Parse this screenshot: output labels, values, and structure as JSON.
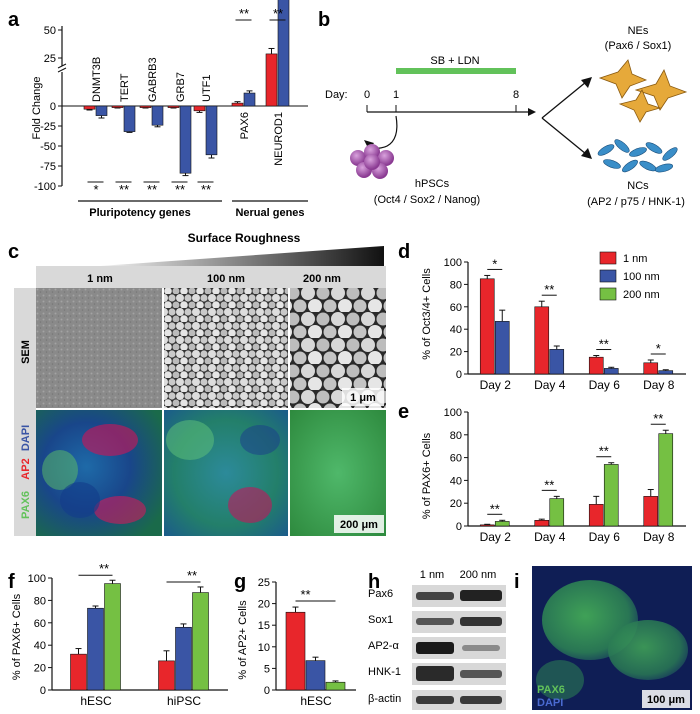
{
  "panel_labels": {
    "a": "a",
    "b": "b",
    "c": "c",
    "d": "d",
    "e": "e",
    "f": "f",
    "g": "g",
    "h": "h",
    "i": "i"
  },
  "colors": {
    "red": "#e8262b",
    "blue": "#3a55a5",
    "green": "#62c25a",
    "green_bar": "#75c043"
  },
  "panel_a": {
    "ylabel": "Fold Change",
    "ticks": [
      "50",
      "25",
      "0",
      "-25",
      "-50",
      "-75",
      "-100"
    ],
    "genes": [
      "DNMT3B",
      "TERT",
      "GABRB3",
      "GRB7",
      "UTF1",
      "PAX6",
      "NEUROD1"
    ],
    "sig": [
      "*",
      "**",
      "**",
      "**",
      "**",
      "**",
      "**"
    ],
    "group1": "Pluripotency genes",
    "group2": "Nerual genes"
  },
  "panel_b": {
    "treatment": "SB + LDN",
    "day_label": "Day:",
    "days": [
      "0",
      "1",
      "8"
    ],
    "hpsc": "hPSCs",
    "hpsc_markers": "(Oct4 / Sox2 / Nanog)",
    "ne": "NEs",
    "ne_markers": "(Pax6 / Sox1)",
    "nc": "NCs",
    "nc_markers": "(AP2 / p75 / HNK-1)"
  },
  "panel_c": {
    "title": "Surface Roughness",
    "cols": [
      "1 nm",
      "100 nm",
      "200 nm"
    ],
    "row1": "SEM",
    "row2_dapi": "DAPI",
    "row2_ap2": "AP2",
    "row2_pax6": "PAX6",
    "scale1": "1 μm",
    "scale2": "200 μm"
  },
  "panel_d": {
    "ylabel": "% of Oct3/4+ Cells",
    "legend": [
      "1 nm",
      "100 nm",
      "200 nm"
    ],
    "sig": [
      "*",
      "**",
      "**",
      "*"
    ]
  },
  "panel_e": {
    "ylabel": "% of PAX6+ Cells",
    "sig": [
      "**",
      "**",
      "**",
      "**"
    ]
  },
  "panel_f": {
    "ylabel": "% of PAX6+ Cells",
    "sig": [
      "**",
      "**"
    ]
  },
  "panel_g": {
    "ylabel": "% of AP2+ Cells",
    "sig": [
      "**"
    ]
  },
  "panel_h": {
    "cols": [
      "1 nm",
      "200 nm"
    ],
    "rows": [
      "Pax6",
      "Sox1",
      "AP2-α",
      "HNK-1",
      "β-actin"
    ]
  },
  "panel_i": {
    "pax6": "PAX6",
    "dapi": "DAPI",
    "scale": "100 μm"
  },
  "chart_data": [
    {
      "type": "bar",
      "title": "",
      "categories": [
        "Day 2",
        "Day 4",
        "Day 6",
        "Day 8"
      ],
      "ylabel": "% of Oct3/4+ Cells",
      "ylim": [
        0,
        100
      ],
      "yticks": [
        "0",
        "20",
        "40",
        "60",
        "80",
        "100"
      ],
      "series": [
        {
          "name": "1 nm",
          "values": [
            85,
            60,
            15,
            10
          ],
          "err": [
            3,
            5,
            1.5,
            2.5
          ]
        },
        {
          "name": "100 nm",
          "values": [
            47,
            22,
            5,
            3
          ],
          "err": [
            10,
            3,
            1,
            0.8
          ]
        }
      ]
    },
    {
      "type": "bar",
      "title": "",
      "categories": [
        "Day 2",
        "Day 4",
        "Day 6",
        "Day 8"
      ],
      "ylabel": "% of PAX6+ Cells",
      "ylim": [
        0,
        100
      ],
      "yticks": [
        "0",
        "20",
        "40",
        "60",
        "80",
        "100"
      ],
      "series": [
        {
          "name": "1 nm",
          "values": [
            1,
            5,
            19,
            26
          ],
          "err": [
            0.5,
            1,
            7,
            6
          ]
        },
        {
          "name": "200 nm",
          "values": [
            4,
            24,
            54,
            81
          ],
          "err": [
            1,
            2,
            1.5,
            3
          ]
        }
      ]
    },
    {
      "type": "bar",
      "title": "",
      "categories": [
        "hESC",
        "hiPSC"
      ],
      "ylabel": "% of PAX6+ Cells",
      "ylim": [
        0,
        100
      ],
      "yticks": [
        "0",
        "20",
        "40",
        "60",
        "80",
        "100"
      ],
      "series": [
        {
          "name": "1 nm",
          "values": [
            32,
            26
          ],
          "err": [
            5,
            9
          ]
        },
        {
          "name": "100 nm",
          "values": [
            73,
            56
          ],
          "err": [
            2,
            3
          ]
        },
        {
          "name": "200 nm",
          "values": [
            95,
            87
          ],
          "err": [
            3,
            5
          ]
        }
      ]
    },
    {
      "type": "bar",
      "title": "",
      "categories": [
        "hESC"
      ],
      "ylabel": "% of AP2+ Cells",
      "ylim": [
        0,
        25
      ],
      "yticks": [
        "0",
        "5",
        "10",
        "15",
        "20",
        "25"
      ],
      "series": [
        {
          "name": "1 nm",
          "values": [
            18
          ],
          "err": [
            1.2
          ]
        },
        {
          "name": "100 nm",
          "values": [
            6.8
          ],
          "err": [
            0.8
          ]
        },
        {
          "name": "200 nm",
          "values": [
            1.8
          ],
          "err": [
            0.3
          ]
        }
      ]
    },
    {
      "type": "bar",
      "title": "",
      "categories": [
        "DNMT3B",
        "TERT",
        "GABRB3",
        "GRB7",
        "UTF1",
        "PAX6",
        "NEUROD1"
      ],
      "ylabel": "Fold Change",
      "series": [
        {
          "name": "1 nm",
          "values": [
            -4,
            -2,
            -2,
            -2,
            -6,
            2,
            28
          ],
          "err": [
            1,
            0.5,
            0.5,
            0.5,
            2,
            1,
            4
          ]
        },
        {
          "name": "200 nm",
          "values": [
            -12,
            -32,
            -24,
            -84,
            -61,
            9,
            85
          ],
          "err": [
            3,
            1,
            2,
            3,
            4,
            1.5,
            7
          ]
        }
      ]
    }
  ]
}
